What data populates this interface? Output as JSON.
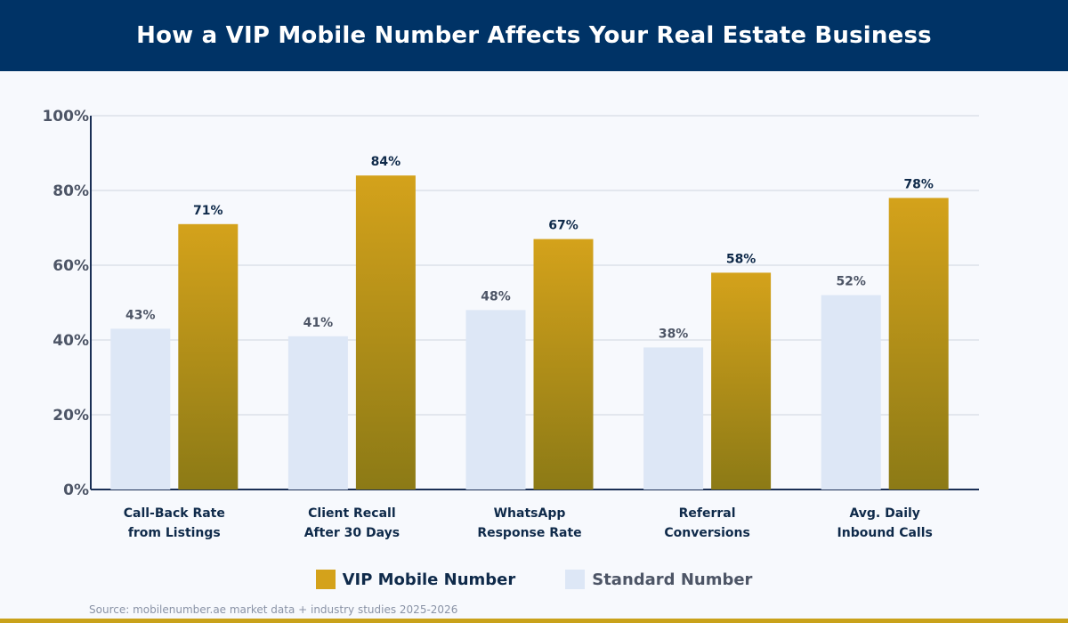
{
  "header": {
    "title": "How a VIP Mobile Number Affects Your Real Estate Business"
  },
  "colors": {
    "header_bg": "#003366",
    "vip_top": "#d4a21b",
    "vip_bottom": "#8c7a16",
    "standard": "#dde7f6",
    "axis": "#1a2f55",
    "vip_label": "#0f2a4a",
    "standard_label": "#4d5566",
    "accent_bar": "#c9a21a"
  },
  "chart_data": {
    "type": "bar",
    "title": "How a VIP Mobile Number Affects Your Real Estate Business",
    "categories": [
      [
        "Call-Back Rate",
        "from Listings"
      ],
      [
        "Client Recall",
        "After 30 Days"
      ],
      [
        "WhatsApp",
        "Response Rate"
      ],
      [
        "Referral",
        "Conversions"
      ],
      [
        "Avg. Daily",
        "Inbound Calls"
      ]
    ],
    "series": [
      {
        "name": "Standard Number",
        "values": [
          43,
          41,
          48,
          38,
          52
        ]
      },
      {
        "name": "VIP Mobile Number",
        "values": [
          71,
          84,
          67,
          58,
          78
        ]
      }
    ],
    "ylim": [
      0,
      100
    ],
    "yticks": [
      "0%",
      "20%",
      "40%",
      "60%",
      "80%",
      "100%"
    ],
    "value_suffix": "%",
    "grid": true,
    "legend_position": "bottom-center"
  },
  "legend": {
    "vip_label": "VIP Mobile Number",
    "standard_label": "Standard Number"
  },
  "footer": {
    "source": "Source: mobilenumber.ae market data + industry studies 2025-2026"
  }
}
